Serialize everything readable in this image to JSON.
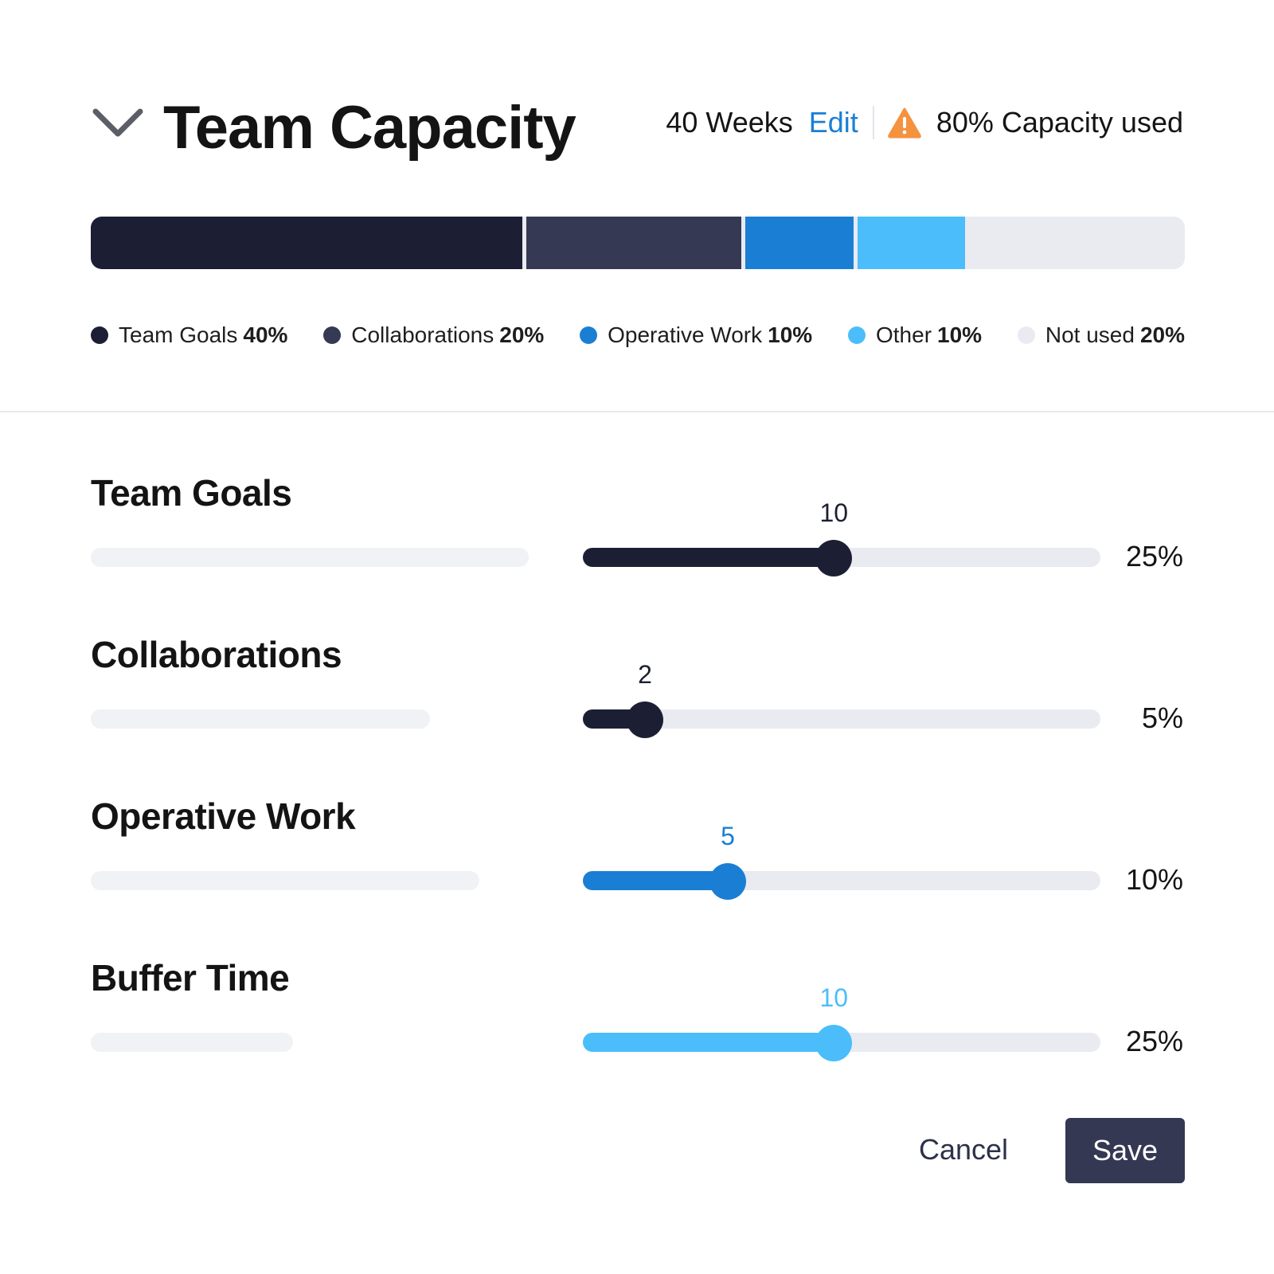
{
  "header": {
    "title": "Team Capacity",
    "weeks": "40 Weeks",
    "edit_label": "Edit",
    "capacity_text": "80% Capacity used",
    "collapse_icon": "chevron-down-icon",
    "warning_icon": "warning-triangle-icon"
  },
  "colors": {
    "team_goals": "#1c1f33",
    "collaborations": "#363953",
    "operative_work": "#1a7fd4",
    "other": "#4bbdfb",
    "not_used": "#e9ebf1",
    "warning": "#f5923e",
    "link": "#1a7fd4"
  },
  "capacity_bar": [
    {
      "label": "Team Goals",
      "value": "40%",
      "share": 40,
      "color": "#1c1f33"
    },
    {
      "label": "Collaborations",
      "value": "20%",
      "share": 20,
      "color": "#363953"
    },
    {
      "label": "Operative Work",
      "value": "10%",
      "share": 10,
      "color": "#1a7fd4"
    },
    {
      "label": "Other",
      "value": "10%",
      "share": 10,
      "color": "#4bbdfb"
    },
    {
      "label": "Not used",
      "value": "20%",
      "share": 20,
      "color": "#e9ebf1"
    }
  ],
  "sliders": [
    {
      "title": "Team Goals",
      "value": "10",
      "percent": "25%",
      "fraction": 0.485,
      "color": "#1c1f33",
      "label_color": "#1c1f33",
      "placeholder_fraction": 0.4
    },
    {
      "title": "Collaborations",
      "value": "2",
      "percent": "5%",
      "fraction": 0.12,
      "color": "#1c1f33",
      "label_color": "#1c1f33",
      "placeholder_fraction": 0.31
    },
    {
      "title": "Operative Work",
      "value": "5",
      "percent": "10%",
      "fraction": 0.28,
      "color": "#1a7fd4",
      "label_color": "#1a7fd4",
      "placeholder_fraction": 0.355
    },
    {
      "title": "Buffer Time",
      "value": "10",
      "percent": "25%",
      "fraction": 0.485,
      "color": "#4bbdfb",
      "label_color": "#4bbdfb",
      "placeholder_fraction": 0.185
    }
  ],
  "footer": {
    "cancel_label": "Cancel",
    "save_label": "Save"
  }
}
